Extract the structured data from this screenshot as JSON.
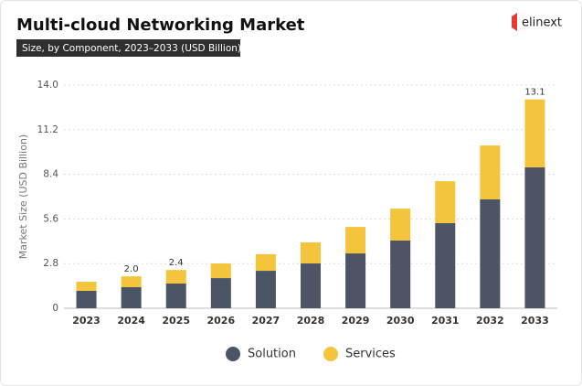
{
  "logo": "elinext",
  "chart_data": {
    "type": "stacked-bar",
    "title": "Multi-cloud Networking Market",
    "subtitle": "Size, by Component, 2023–2033 (USD Billion)",
    "y_label": "Market Size (USD Billion)",
    "categories": [
      "2023",
      "2024",
      "2025",
      "2026",
      "2027",
      "2028",
      "2029",
      "2030",
      "2031",
      "2032",
      "2033"
    ],
    "series": [
      {
        "name": "Solution",
        "color": "#4b5566",
        "values": [
          1.09,
          1.32,
          1.55,
          1.89,
          2.35,
          2.81,
          3.44,
          4.25,
          5.34,
          6.83,
          8.84
        ]
      },
      {
        "name": "Services",
        "color": "#f4c43c",
        "values": [
          0.57,
          0.68,
          0.85,
          0.92,
          1.04,
          1.32,
          1.66,
          2.0,
          2.63,
          3.38,
          4.26
        ]
      }
    ],
    "total_labels": [
      null,
      "2.0",
      "2.4",
      null,
      null,
      null,
      null,
      null,
      null,
      null,
      "13.1"
    ],
    "ylim": [
      0,
      14
    ],
    "yticks": [
      0,
      2.8,
      5.6,
      8.4,
      11.2,
      {
        "value": 14,
        "label": "14.0"
      }
    ],
    "grid": true,
    "legend": "bottom"
  }
}
